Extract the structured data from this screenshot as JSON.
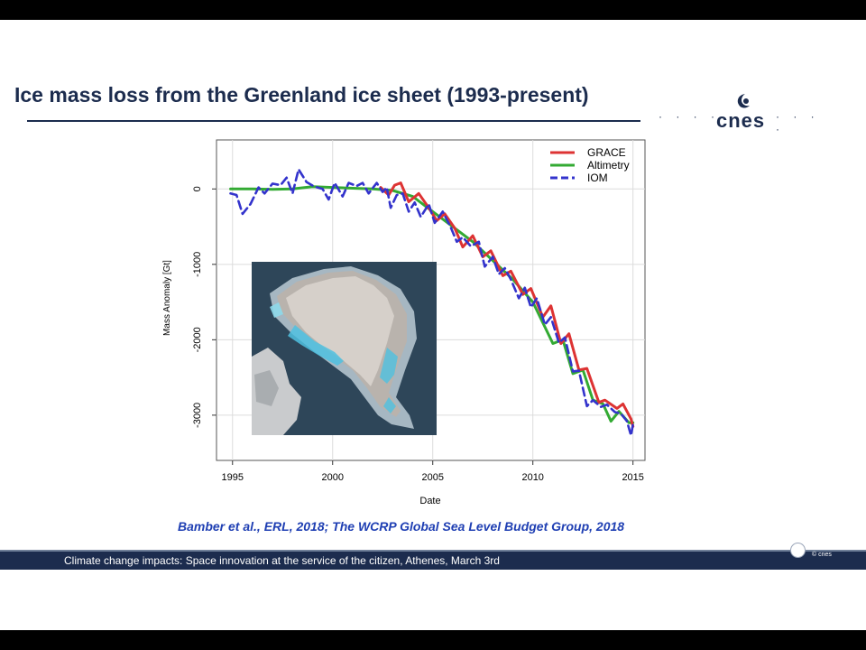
{
  "slide": {
    "title": "Ice mass loss from the Greenland ice sheet (1993-present)",
    "citation": "Bamber et al., ERL, 2018; The WCRP Global Sea Level Budget Group, 2018",
    "footer": "Climate change impacts: Space innovation at the service of the citizen, Athenes, March 3rd",
    "copyright": "© cnes",
    "logo": {
      "text": "cnes",
      "dots": "· · · ·"
    }
  },
  "colors": {
    "title": "#1c2c4e",
    "citation": "#1f3fb3",
    "footer_bar": "#1c2c4e",
    "grace": "#dd3333",
    "altimetry": "#33aa33",
    "iom": "#3333cc"
  },
  "chart_data": {
    "type": "line",
    "title": "",
    "xlabel": "Date",
    "ylabel": "Mass Anomaly [Gt]",
    "xlim": [
      1994.2,
      2015.6
    ],
    "ylim": [
      -3600,
      650
    ],
    "xticks": [
      1995,
      2000,
      2005,
      2010,
      2015
    ],
    "yticks": [
      0,
      -1000,
      -2000,
      -3000
    ],
    "grid": true,
    "legend_position": "top-right",
    "series": [
      {
        "name": "GRACE",
        "color": "#dd3333",
        "dash": "solid",
        "points": [
          [
            2002.4,
            20
          ],
          [
            2002.8,
            -80
          ],
          [
            2003.1,
            50
          ],
          [
            2003.4,
            80
          ],
          [
            2003.8,
            -170
          ],
          [
            2004.3,
            -60
          ],
          [
            2004.8,
            -250
          ],
          [
            2005.2,
            -420
          ],
          [
            2005.6,
            -330
          ],
          [
            2006.1,
            -520
          ],
          [
            2006.5,
            -770
          ],
          [
            2007.0,
            -620
          ],
          [
            2007.5,
            -900
          ],
          [
            2007.9,
            -820
          ],
          [
            2008.5,
            -1150
          ],
          [
            2008.9,
            -1090
          ],
          [
            2009.5,
            -1400
          ],
          [
            2009.9,
            -1320
          ],
          [
            2010.5,
            -1700
          ],
          [
            2010.9,
            -1550
          ],
          [
            2011.4,
            -2050
          ],
          [
            2011.8,
            -1920
          ],
          [
            2012.3,
            -2400
          ],
          [
            2012.7,
            -2380
          ],
          [
            2013.3,
            -2830
          ],
          [
            2013.6,
            -2800
          ],
          [
            2014.2,
            -2910
          ],
          [
            2014.5,
            -2850
          ],
          [
            2014.9,
            -3050
          ],
          [
            2015.0,
            -3150
          ]
        ]
      },
      {
        "name": "Altimetry",
        "color": "#33aa33",
        "dash": "solid",
        "points": [
          [
            1994.9,
            0
          ],
          [
            1996.0,
            0
          ],
          [
            1997.0,
            -5
          ],
          [
            1998.0,
            0
          ],
          [
            1999.0,
            30
          ],
          [
            2000.0,
            20
          ],
          [
            2001.0,
            10
          ],
          [
            2002.0,
            0
          ],
          [
            2003.0,
            -20
          ],
          [
            2004.0,
            -100
          ],
          [
            2005.0,
            -300
          ],
          [
            2006.0,
            -500
          ],
          [
            2007.0,
            -700
          ],
          [
            2008.0,
            -950
          ],
          [
            2009.0,
            -1200
          ],
          [
            2010.0,
            -1500
          ],
          [
            2011.0,
            -2050
          ],
          [
            2011.5,
            -2000
          ],
          [
            2012.0,
            -2450
          ],
          [
            2012.5,
            -2400
          ],
          [
            2013.0,
            -2800
          ],
          [
            2013.5,
            -2850
          ],
          [
            2013.9,
            -3080
          ],
          [
            2014.3,
            -2950
          ],
          [
            2014.8,
            -3100
          ],
          [
            2015.0,
            -3100
          ]
        ]
      },
      {
        "name": "IOM",
        "color": "#3333cc",
        "dash": "dashed",
        "points": [
          [
            1994.9,
            -60
          ],
          [
            1995.2,
            -80
          ],
          [
            1995.5,
            -330
          ],
          [
            1995.9,
            -200
          ],
          [
            1996.3,
            20
          ],
          [
            1996.6,
            -60
          ],
          [
            1997.0,
            70
          ],
          [
            1997.4,
            50
          ],
          [
            1997.7,
            150
          ],
          [
            1998.0,
            -60
          ],
          [
            1998.3,
            260
          ],
          [
            1998.7,
            90
          ],
          [
            1999.1,
            30
          ],
          [
            1999.5,
            0
          ],
          [
            1999.8,
            -140
          ],
          [
            2000.1,
            80
          ],
          [
            2000.5,
            -100
          ],
          [
            2000.8,
            80
          ],
          [
            2001.2,
            40
          ],
          [
            2001.5,
            80
          ],
          [
            2001.8,
            -60
          ],
          [
            2002.2,
            80
          ],
          [
            2002.5,
            -40
          ],
          [
            2002.7,
            20
          ],
          [
            2002.9,
            -250
          ],
          [
            2003.2,
            -80
          ],
          [
            2003.5,
            -60
          ],
          [
            2003.8,
            -300
          ],
          [
            2004.1,
            -180
          ],
          [
            2004.4,
            -370
          ],
          [
            2004.8,
            -200
          ],
          [
            2005.1,
            -450
          ],
          [
            2005.5,
            -300
          ],
          [
            2005.9,
            -510
          ],
          [
            2006.2,
            -700
          ],
          [
            2006.5,
            -640
          ],
          [
            2006.9,
            -760
          ],
          [
            2007.3,
            -700
          ],
          [
            2007.6,
            -1030
          ],
          [
            2008.0,
            -900
          ],
          [
            2008.3,
            -1130
          ],
          [
            2008.6,
            -1050
          ],
          [
            2008.9,
            -1200
          ],
          [
            2009.3,
            -1450
          ],
          [
            2009.6,
            -1310
          ],
          [
            2009.9,
            -1570
          ],
          [
            2010.2,
            -1450
          ],
          [
            2010.6,
            -1800
          ],
          [
            2010.9,
            -1700
          ],
          [
            2011.3,
            -2040
          ],
          [
            2011.6,
            -1970
          ],
          [
            2012.0,
            -2420
          ],
          [
            2012.3,
            -2410
          ],
          [
            2012.7,
            -2880
          ],
          [
            2013.0,
            -2800
          ],
          [
            2013.4,
            -2890
          ],
          [
            2013.7,
            -2860
          ],
          [
            2014.1,
            -2960
          ],
          [
            2014.4,
            -2980
          ],
          [
            2014.7,
            -3080
          ],
          [
            2014.9,
            -3270
          ],
          [
            2015.0,
            -3120
          ]
        ]
      }
    ]
  }
}
